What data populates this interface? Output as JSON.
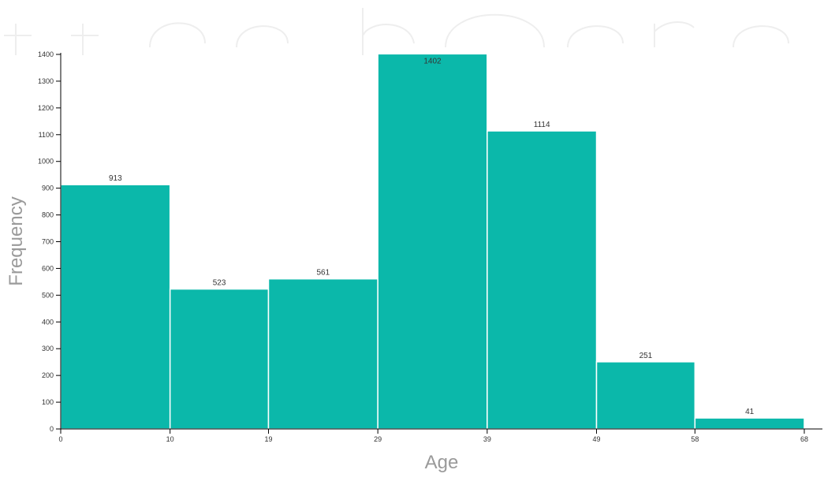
{
  "chart_data": {
    "type": "bar",
    "xlabel": "Age",
    "ylabel": "Frequency",
    "bins": [
      {
        "start": 0,
        "end": 10,
        "value": 913
      },
      {
        "start": 10,
        "end": 19,
        "value": 523
      },
      {
        "start": 19,
        "end": 29,
        "value": 561
      },
      {
        "start": 29,
        "end": 39,
        "value": 1402
      },
      {
        "start": 39,
        "end": 49,
        "value": 1114
      },
      {
        "start": 49,
        "end": 58,
        "value": 251
      },
      {
        "start": 58,
        "end": 68,
        "value": 41
      }
    ],
    "x_ticks": [
      "0",
      "10",
      "19",
      "29",
      "39",
      "49",
      "58",
      "68"
    ],
    "y_ticks": [
      0,
      100,
      200,
      300,
      400,
      500,
      600,
      700,
      800,
      900,
      1000,
      1100,
      1200,
      1300,
      1400
    ],
    "ylim": [
      0,
      1400
    ],
    "xlim": [
      0,
      68
    ],
    "grid": false,
    "legend": "none",
    "bar_color": "#0bb8aa",
    "bar_border_color": "#ffffff",
    "axis_color": "#000000"
  }
}
